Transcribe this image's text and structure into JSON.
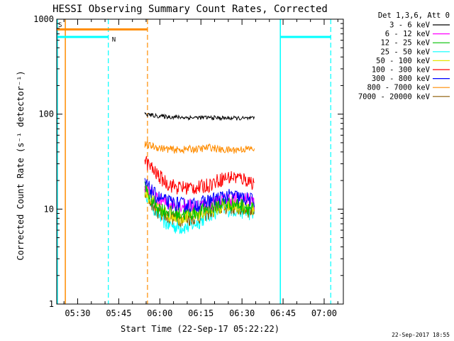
{
  "chart_data": {
    "type": "line",
    "title": "HESSI Observing Summary Count Rates, Corrected",
    "xlabel": "Start Time (22-Sep-17 05:22:22)",
    "ylabel": "Corrected Count Rate (s⁻¹ detector⁻¹)",
    "y_scale": "log",
    "ylim": [
      1,
      1000
    ],
    "y_ticks": [
      {
        "value": 1,
        "label": "1"
      },
      {
        "value": 10,
        "label": "10"
      },
      {
        "value": 100,
        "label": "100"
      },
      {
        "value": 1000,
        "label": "1000"
      }
    ],
    "xlim_minutes": [
      322.37,
      427
    ],
    "x_ticks": [
      {
        "minute": 330,
        "label": "05:30"
      },
      {
        "minute": 345,
        "label": "05:45"
      },
      {
        "minute": 360,
        "label": "06:00"
      },
      {
        "minute": 375,
        "label": "06:15"
      },
      {
        "minute": 390,
        "label": "06:30"
      },
      {
        "minute": 405,
        "label": "06:45"
      },
      {
        "minute": 420,
        "label": "07:00"
      }
    ],
    "legend_header": "Det 1,3,6, Att 0",
    "legend_position": "outside-right",
    "series": [
      {
        "name": "3 - 6 keV",
        "color": "#000000",
        "values": [
          100,
          96,
          94,
          93,
          92,
          92,
          92,
          91,
          91,
          90,
          90
        ]
      },
      {
        "name": "6 - 12 keV",
        "color": "#ff00ff",
        "values": [
          18,
          13,
          11.5,
          11,
          11,
          11,
          11.5,
          12.5,
          13,
          13,
          12
        ]
      },
      {
        "name": "12 - 25 keV",
        "color": "#00c000",
        "values": [
          17,
          11,
          9.5,
          9,
          9,
          9.5,
          10.5,
          11.5,
          11.5,
          11,
          10
        ]
      },
      {
        "name": "25 - 50 keV",
        "color": "#00ffff",
        "values": [
          16,
          9.5,
          7,
          6.5,
          6.5,
          7.5,
          9,
          10,
          10,
          9.5,
          9
        ]
      },
      {
        "name": "50 - 100 keV",
        "color": "#e6e600",
        "values": [
          16,
          10.5,
          9,
          8.5,
          8.5,
          9,
          10,
          10.5,
          11,
          10.5,
          10
        ]
      },
      {
        "name": "100 - 300 keV",
        "color": "#ff0000",
        "values": [
          33,
          24,
          19,
          17,
          17,
          17,
          18.5,
          21,
          22,
          21,
          19
        ]
      },
      {
        "name": "300 - 800 keV",
        "color": "#0000ff",
        "values": [
          19,
          14,
          12,
          11.5,
          11,
          11.5,
          12.5,
          13.5,
          14,
          13,
          12.5
        ]
      },
      {
        "name": "800 - 7000 keV",
        "color": "#ff8c00",
        "values": [
          48,
          45,
          43,
          42,
          43,
          43,
          45,
          42,
          42,
          43,
          43
        ]
      },
      {
        "name": "7000 - 20000 keV",
        "color": "#8b5a00",
        "values": [
          15,
          10,
          8.5,
          8,
          8,
          8.5,
          9.5,
          10.5,
          10.5,
          10,
          9.5
        ]
      }
    ],
    "series_x_minutes": [
      354.5,
      358.5,
      362.5,
      366.5,
      370.5,
      374.5,
      378.5,
      382.5,
      386.5,
      390.5,
      394.5
    ],
    "annotations": [
      {
        "type": "solid-vline",
        "color": "#00ffff",
        "minute": 322.6
      },
      {
        "type": "solid-vline",
        "color": "#ff8c00",
        "minute": 325.5
      },
      {
        "type": "dashed-vline",
        "color": "#00ffff",
        "minute": 341.2
      },
      {
        "type": "dashed-vline",
        "color": "#ff8c00",
        "minute": 355.5
      },
      {
        "type": "solid-vline",
        "color": "#00ffff",
        "minute": 404.0
      },
      {
        "type": "dashed-vline",
        "color": "#00ffff",
        "minute": 422.4
      },
      {
        "type": "hbar",
        "color": "#ff8c00",
        "from": 322.37,
        "to": 355.5,
        "value": 780
      },
      {
        "type": "hbar",
        "color": "#00ffff",
        "from": 322.37,
        "to": 341.2,
        "value": 650
      },
      {
        "type": "hbar",
        "color": "#00ffff",
        "from": 404.0,
        "to": 422.4,
        "value": 650
      },
      {
        "type": "label",
        "text": "S",
        "color": "#ff8c00",
        "minute": 322.9,
        "value": 830
      },
      {
        "type": "label",
        "text": "N",
        "color": "#00ffff",
        "minute": 342.5,
        "value": 580
      }
    ],
    "timestamp": "22-Sep-2017 18:55"
  }
}
